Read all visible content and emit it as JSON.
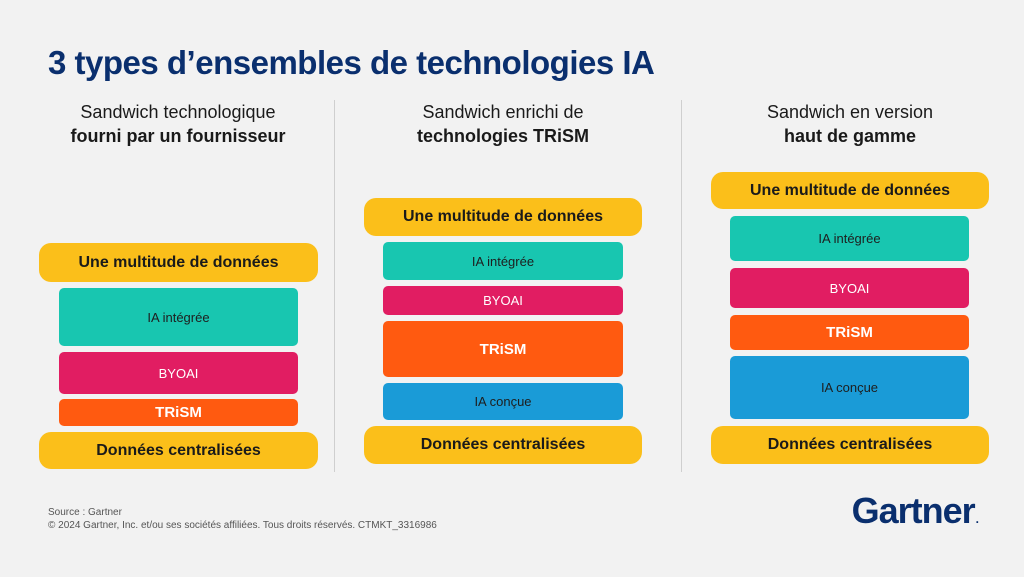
{
  "title": "3 types d’ensembles de technologies IA",
  "columns": [
    {
      "heading_line1": "Sandwich technologique",
      "heading_line2": "fourni par un fournisseur",
      "layers": [
        "Une multitude de données",
        "IA intégrée",
        "BYOAI",
        "TRiSM",
        "Données centralisées"
      ]
    },
    {
      "heading_line1": "Sandwich enrichi de",
      "heading_line2": "technologies TRiSM",
      "layers": [
        "Une multitude de données",
        "IA intégrée",
        "BYOAI",
        "TRiSM",
        "IA conçue",
        "Données centralisées"
      ]
    },
    {
      "heading_line1": "Sandwich en version",
      "heading_line2": "haut de gamme",
      "layers": [
        "Une multitude de données",
        "IA intégrée",
        "BYOAI",
        "TRiSM",
        "IA conçue",
        "Données centralisées"
      ]
    }
  ],
  "footer": {
    "source": "Source : Gartner",
    "copyright": "© 2024 Gartner, Inc. et/ou ses sociétés affiliées. Tous droits réservés. CTMKT_3316986"
  },
  "logo": {
    "text": "Gartner",
    "mark": "."
  },
  "colors": {
    "title": "#0a2f6e",
    "bread": "#fbbf1a",
    "ia_integree": "#18c6b0",
    "byoai": "#e11d62",
    "trism": "#ff5a10",
    "ia_concue": "#1a9bd7"
  }
}
